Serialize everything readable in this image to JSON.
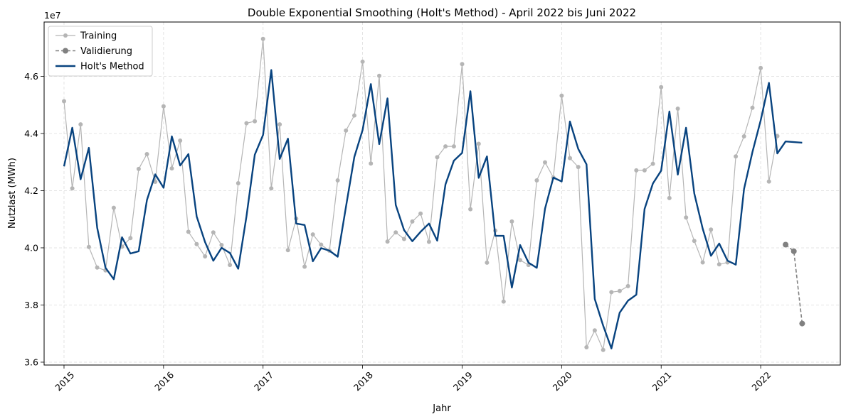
{
  "chart_data": {
    "type": "line",
    "title": "Double Exponential Smoothing (Holt's Method) - April 2022 bis Juni 2022",
    "xlabel": "Jahr",
    "ylabel": "Nutzlast (MWh)",
    "y_offset_label": "1e7",
    "xlim": [
      2014.8,
      2022.8
    ],
    "ylim": [
      3.59,
      4.79
    ],
    "x_ticks": [
      2015,
      2016,
      2017,
      2018,
      2019,
      2020,
      2021,
      2022
    ],
    "x_tick_labels": [
      "2015",
      "2016",
      "2017",
      "2018",
      "2019",
      "2020",
      "2021",
      "2022"
    ],
    "y_ticks": [
      3.6,
      3.8,
      4.0,
      4.2,
      4.4,
      4.6
    ],
    "y_tick_labels": [
      "3.6",
      "3.8",
      "4.0",
      "4.2",
      "4.4",
      "4.6"
    ],
    "grid": true,
    "legend_position": "top-left",
    "series": [
      {
        "name": "Training",
        "color": "#b5b5b5",
        "style": "solid-line-circle-markers",
        "points": [
          [
            2015.0,
            4.513
          ],
          [
            2015.083,
            4.208
          ],
          [
            2015.167,
            4.432
          ],
          [
            2015.25,
            4.003
          ],
          [
            2015.333,
            3.931
          ],
          [
            2015.417,
            3.921
          ],
          [
            2015.5,
            4.14
          ],
          [
            2015.583,
            4.004
          ],
          [
            2015.667,
            4.034
          ],
          [
            2015.75,
            4.276
          ],
          [
            2015.833,
            4.328
          ],
          [
            2015.917,
            4.231
          ],
          [
            2016.0,
            4.495
          ],
          [
            2016.083,
            4.278
          ],
          [
            2016.167,
            4.375
          ],
          [
            2016.25,
            4.056
          ],
          [
            2016.333,
            4.013
          ],
          [
            2016.417,
            3.97
          ],
          [
            2016.5,
            4.054
          ],
          [
            2016.583,
            4.01
          ],
          [
            2016.667,
            3.94
          ],
          [
            2016.75,
            4.226
          ],
          [
            2016.833,
            4.436
          ],
          [
            2016.917,
            4.443
          ],
          [
            2017.0,
            4.731
          ],
          [
            2017.083,
            4.208
          ],
          [
            2017.167,
            4.432
          ],
          [
            2017.25,
            3.992
          ],
          [
            2017.333,
            4.102
          ],
          [
            2017.417,
            3.934
          ],
          [
            2017.5,
            4.047
          ],
          [
            2017.583,
            4.011
          ],
          [
            2017.667,
            3.99
          ],
          [
            2017.75,
            4.236
          ],
          [
            2017.833,
            4.41
          ],
          [
            2017.917,
            4.463
          ],
          [
            2018.0,
            4.651
          ],
          [
            2018.083,
            4.295
          ],
          [
            2018.167,
            4.602
          ],
          [
            2018.25,
            4.022
          ],
          [
            2018.333,
            4.054
          ],
          [
            2018.417,
            4.031
          ],
          [
            2018.5,
            4.092
          ],
          [
            2018.583,
            4.12
          ],
          [
            2018.667,
            4.021
          ],
          [
            2018.75,
            4.317
          ],
          [
            2018.833,
            4.355
          ],
          [
            2018.917,
            4.355
          ],
          [
            2019.0,
            4.643
          ],
          [
            2019.083,
            4.135
          ],
          [
            2019.167,
            4.364
          ],
          [
            2019.25,
            3.948
          ],
          [
            2019.333,
            4.06
          ],
          [
            2019.417,
            3.812
          ],
          [
            2019.5,
            4.092
          ],
          [
            2019.583,
            3.957
          ],
          [
            2019.667,
            3.94
          ],
          [
            2019.75,
            4.236
          ],
          [
            2019.833,
            4.299
          ],
          [
            2019.917,
            4.246
          ],
          [
            2020.0,
            4.532
          ],
          [
            2020.083,
            4.314
          ],
          [
            2020.167,
            4.283
          ],
          [
            2020.25,
            3.652
          ],
          [
            2020.333,
            3.711
          ],
          [
            2020.417,
            3.643
          ],
          [
            2020.5,
            3.845
          ],
          [
            2020.583,
            3.849
          ],
          [
            2020.667,
            3.866
          ],
          [
            2020.75,
            4.271
          ],
          [
            2020.833,
            4.271
          ],
          [
            2020.917,
            4.294
          ],
          [
            2021.0,
            4.562
          ],
          [
            2021.083,
            4.174
          ],
          [
            2021.167,
            4.487
          ],
          [
            2021.25,
            4.106
          ],
          [
            2021.333,
            4.024
          ],
          [
            2021.417,
            3.949
          ],
          [
            2021.5,
            4.064
          ],
          [
            2021.583,
            3.942
          ],
          [
            2021.667,
            3.949
          ],
          [
            2021.75,
            4.32
          ],
          [
            2021.833,
            4.39
          ],
          [
            2021.917,
            4.49
          ],
          [
            2022.0,
            4.629
          ],
          [
            2022.083,
            4.232
          ],
          [
            2022.167,
            4.391
          ]
        ]
      },
      {
        "name": "Validierung",
        "color": "#808080",
        "style": "dashed-line-circle-markers",
        "points": [
          [
            2022.25,
            4.011
          ],
          [
            2022.333,
            3.988
          ],
          [
            2022.417,
            3.735
          ]
        ]
      },
      {
        "name": "Holt's Method",
        "color": "#08437f",
        "style": "solid-line",
        "points": [
          [
            2015.0,
            4.285
          ],
          [
            2015.083,
            4.42
          ],
          [
            2015.167,
            4.24
          ],
          [
            2015.25,
            4.35
          ],
          [
            2015.333,
            4.07
          ],
          [
            2015.417,
            3.93
          ],
          [
            2015.5,
            3.89
          ],
          [
            2015.583,
            4.037
          ],
          [
            2015.667,
            3.98
          ],
          [
            2015.75,
            3.988
          ],
          [
            2015.833,
            4.167
          ],
          [
            2015.917,
            4.257
          ],
          [
            2016.0,
            4.21
          ],
          [
            2016.083,
            4.39
          ],
          [
            2016.167,
            4.288
          ],
          [
            2016.25,
            4.328
          ],
          [
            2016.333,
            4.11
          ],
          [
            2016.417,
            4.02
          ],
          [
            2016.5,
            3.955
          ],
          [
            2016.583,
            4.0
          ],
          [
            2016.667,
            3.982
          ],
          [
            2016.75,
            3.927
          ],
          [
            2016.833,
            4.11
          ],
          [
            2016.917,
            4.326
          ],
          [
            2017.0,
            4.395
          ],
          [
            2017.083,
            4.622
          ],
          [
            2017.167,
            4.311
          ],
          [
            2017.25,
            4.382
          ],
          [
            2017.333,
            4.085
          ],
          [
            2017.417,
            4.08
          ],
          [
            2017.5,
            3.953
          ],
          [
            2017.583,
            3.999
          ],
          [
            2017.667,
            3.99
          ],
          [
            2017.75,
            3.969
          ],
          [
            2017.833,
            4.143
          ],
          [
            2017.917,
            4.318
          ],
          [
            2018.0,
            4.412
          ],
          [
            2018.083,
            4.573
          ],
          [
            2018.167,
            4.363
          ],
          [
            2018.25,
            4.523
          ],
          [
            2018.333,
            4.15
          ],
          [
            2018.417,
            4.062
          ],
          [
            2018.5,
            4.023
          ],
          [
            2018.583,
            4.056
          ],
          [
            2018.667,
            4.085
          ],
          [
            2018.75,
            4.025
          ],
          [
            2018.833,
            4.222
          ],
          [
            2018.917,
            4.305
          ],
          [
            2019.0,
            4.332
          ],
          [
            2019.083,
            4.548
          ],
          [
            2019.167,
            4.245
          ],
          [
            2019.25,
            4.32
          ],
          [
            2019.333,
            4.042
          ],
          [
            2019.417,
            4.042
          ],
          [
            2019.5,
            3.861
          ],
          [
            2019.583,
            4.01
          ],
          [
            2019.667,
            3.948
          ],
          [
            2019.75,
            3.93
          ],
          [
            2019.833,
            4.137
          ],
          [
            2019.917,
            4.246
          ],
          [
            2020.0,
            4.232
          ],
          [
            2020.083,
            4.442
          ],
          [
            2020.167,
            4.346
          ],
          [
            2020.25,
            4.292
          ],
          [
            2020.333,
            3.821
          ],
          [
            2020.417,
            3.728
          ],
          [
            2020.5,
            3.648
          ],
          [
            2020.583,
            3.773
          ],
          [
            2020.667,
            3.815
          ],
          [
            2020.75,
            3.836
          ],
          [
            2020.833,
            4.136
          ],
          [
            2020.917,
            4.225
          ],
          [
            2021.0,
            4.27
          ],
          [
            2021.083,
            4.477
          ],
          [
            2021.167,
            4.256
          ],
          [
            2021.25,
            4.42
          ],
          [
            2021.333,
            4.19
          ],
          [
            2021.417,
            4.067
          ],
          [
            2021.5,
            3.972
          ],
          [
            2021.583,
            4.015
          ],
          [
            2021.667,
            3.955
          ],
          [
            2021.75,
            3.941
          ],
          [
            2021.833,
            4.206
          ],
          [
            2021.917,
            4.335
          ],
          [
            2022.0,
            4.446
          ],
          [
            2022.083,
            4.577
          ],
          [
            2022.167,
            4.33
          ],
          [
            2022.25,
            4.372
          ],
          [
            2022.417,
            4.368
          ]
        ]
      }
    ]
  }
}
